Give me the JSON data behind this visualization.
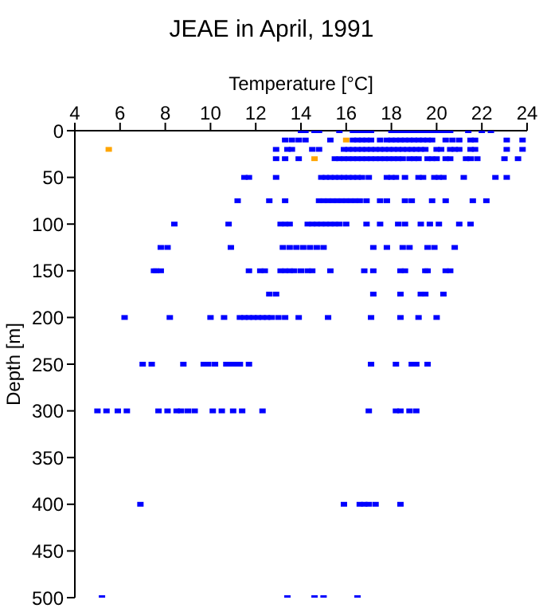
{
  "chart_data": {
    "type": "scatter",
    "title": "JEAE in April, 1991",
    "xlabel": "Temperature [°C]",
    "ylabel": "Depth [m]",
    "xlim": [
      4,
      24
    ],
    "xticks": [
      4,
      6,
      8,
      10,
      12,
      14,
      16,
      18,
      20,
      22,
      24
    ],
    "ylim": [
      500,
      0
    ],
    "yticks": [
      0,
      50,
      100,
      150,
      200,
      250,
      300,
      350,
      400,
      450,
      500
    ],
    "grid": false,
    "legend": false,
    "marker": "square",
    "series": [
      {
        "color": "#0000ff",
        "x": [
          14.0,
          14.2,
          14.6,
          14.8,
          15.7,
          16.3,
          16.5,
          16.7,
          16.9,
          17.1,
          18.0,
          18.2,
          18.4,
          18.6,
          18.8,
          19.0,
          19.2,
          19.4,
          19.6,
          19.8,
          20.0,
          20.2,
          20.4,
          20.6,
          21.4,
          22.0,
          22.4,
          13.3,
          13.6,
          13.9,
          14.2,
          15.3,
          16.3,
          16.5,
          16.7,
          16.9,
          17.1,
          17.5,
          17.8,
          18.0,
          18.2,
          18.4,
          18.6,
          18.8,
          19.0,
          19.2,
          19.4,
          19.6,
          19.8,
          20.4,
          20.7,
          21.0,
          21.5,
          21.7,
          23.1,
          23.8,
          12.9,
          13.4,
          13.6,
          14.5,
          14.8,
          15.9,
          16.1,
          16.3,
          16.5,
          16.7,
          16.9,
          17.1,
          17.3,
          17.5,
          17.7,
          17.9,
          18.1,
          18.3,
          18.5,
          18.7,
          18.9,
          19.1,
          19.3,
          19.5,
          20.0,
          20.2,
          20.6,
          20.8,
          21.0,
          21.5,
          21.7,
          23.1,
          23.8,
          12.9,
          13.3,
          13.9,
          15.5,
          15.7,
          15.9,
          16.1,
          16.3,
          16.5,
          16.7,
          16.9,
          17.1,
          17.3,
          17.5,
          17.7,
          17.9,
          18.1,
          18.3,
          18.5,
          18.8,
          19.0,
          19.2,
          19.6,
          19.8,
          20.0,
          20.4,
          20.6,
          21.3,
          21.5,
          21.8,
          23.0,
          23.6,
          11.5,
          11.7,
          12.9,
          14.9,
          15.1,
          15.3,
          15.5,
          15.7,
          15.9,
          16.1,
          16.3,
          16.5,
          16.7,
          17.0,
          17.8,
          18.0,
          18.2,
          18.6,
          19.2,
          19.4,
          19.9,
          20.1,
          20.3,
          21.2,
          22.6,
          23.1,
          11.2,
          12.6,
          13.3,
          14.8,
          15.0,
          15.2,
          15.4,
          15.6,
          15.8,
          16.0,
          16.2,
          16.4,
          16.6,
          16.9,
          17.5,
          17.8,
          18.6,
          18.9,
          19.8,
          20.4,
          21.6,
          22.2,
          8.4,
          10.8,
          13.1,
          13.3,
          13.5,
          14.3,
          14.5,
          14.7,
          14.9,
          15.1,
          15.3,
          15.5,
          15.7,
          16.0,
          16.9,
          17.5,
          18.3,
          18.6,
          19.3,
          19.7,
          20.1,
          21.0,
          21.5,
          7.8,
          8.1,
          10.9,
          13.2,
          13.5,
          13.8,
          14.1,
          14.4,
          14.7,
          15.0,
          17.2,
          17.8,
          18.5,
          18.8,
          19.6,
          19.9,
          20.8,
          7.5,
          7.6,
          7.8,
          11.7,
          12.2,
          12.4,
          13.1,
          13.3,
          13.5,
          13.7,
          14.0,
          14.3,
          14.5,
          15.3,
          16.8,
          17.2,
          18.4,
          18.6,
          19.5,
          19.6,
          20.4,
          20.6,
          12.6,
          12.9,
          17.2,
          18.4,
          19.3,
          19.5,
          20.3,
          6.2,
          8.2,
          10.0,
          10.6,
          11.3,
          11.5,
          11.7,
          11.9,
          12.1,
          12.3,
          12.5,
          12.7,
          13.0,
          13.3,
          13.9,
          15.2,
          17.1,
          18.4,
          19.2,
          20.0,
          7.0,
          7.4,
          8.8,
          9.7,
          9.9,
          10.2,
          10.7,
          10.9,
          11.1,
          11.3,
          11.7,
          17.1,
          18.2,
          18.9,
          19.1,
          19.6,
          5.0,
          5.4,
          5.9,
          6.3,
          7.7,
          8.1,
          8.5,
          8.7,
          9.0,
          9.3,
          10.1,
          10.5,
          11.0,
          11.4,
          12.3,
          17.0,
          18.2,
          18.4,
          18.8,
          19.1,
          6.9,
          15.9,
          16.6,
          16.8,
          17.0,
          17.3,
          18.4,
          5.2,
          13.4,
          14.6,
          15.0,
          16.5
        ],
        "values": [
          0,
          0,
          0,
          0,
          0,
          0,
          0,
          0,
          0,
          0,
          0,
          0,
          0,
          0,
          0,
          0,
          0,
          0,
          0,
          0,
          0,
          0,
          0,
          0,
          0,
          0,
          0,
          10,
          10,
          10,
          10,
          10,
          10,
          10,
          10,
          10,
          10,
          10,
          10,
          10,
          10,
          10,
          10,
          10,
          10,
          10,
          10,
          10,
          10,
          10,
          10,
          10,
          10,
          10,
          10,
          10,
          20,
          20,
          20,
          20,
          20,
          20,
          20,
          20,
          20,
          20,
          20,
          20,
          20,
          20,
          20,
          20,
          20,
          20,
          20,
          20,
          20,
          20,
          20,
          20,
          20,
          20,
          20,
          20,
          20,
          20,
          20,
          20,
          20,
          30,
          30,
          30,
          30,
          30,
          30,
          30,
          30,
          30,
          30,
          30,
          30,
          30,
          30,
          30,
          30,
          30,
          30,
          30,
          30,
          30,
          30,
          30,
          30,
          30,
          30,
          30,
          30,
          30,
          30,
          30,
          30,
          50,
          50,
          50,
          50,
          50,
          50,
          50,
          50,
          50,
          50,
          50,
          50,
          50,
          50,
          50,
          50,
          50,
          50,
          50,
          50,
          50,
          50,
          50,
          50,
          50,
          50,
          75,
          75,
          75,
          75,
          75,
          75,
          75,
          75,
          75,
          75,
          75,
          75,
          75,
          75,
          75,
          75,
          75,
          75,
          75,
          75,
          75,
          75,
          100,
          100,
          100,
          100,
          100,
          100,
          100,
          100,
          100,
          100,
          100,
          100,
          100,
          100,
          100,
          100,
          100,
          100,
          100,
          100,
          100,
          100,
          100,
          125,
          125,
          125,
          125,
          125,
          125,
          125,
          125,
          125,
          125,
          125,
          125,
          125,
          125,
          125,
          125,
          125,
          150,
          150,
          150,
          150,
          150,
          150,
          150,
          150,
          150,
          150,
          150,
          150,
          150,
          150,
          150,
          150,
          150,
          150,
          150,
          150,
          150,
          150,
          175,
          175,
          175,
          175,
          175,
          175,
          175,
          200,
          200,
          200,
          200,
          200,
          200,
          200,
          200,
          200,
          200,
          200,
          200,
          200,
          200,
          200,
          200,
          200,
          200,
          200,
          200,
          250,
          250,
          250,
          250,
          250,
          250,
          250,
          250,
          250,
          250,
          250,
          250,
          250,
          250,
          250,
          250,
          300,
          300,
          300,
          300,
          300,
          300,
          300,
          300,
          300,
          300,
          300,
          300,
          300,
          300,
          300,
          300,
          300,
          300,
          300,
          300,
          400,
          400,
          400,
          400,
          400,
          400,
          400,
          500,
          500,
          500,
          500,
          500
        ]
      },
      {
        "color": "#ffa500",
        "x": [
          5.5,
          16.0,
          14.6
        ],
        "values": [
          20,
          10,
          30
        ]
      }
    ]
  }
}
